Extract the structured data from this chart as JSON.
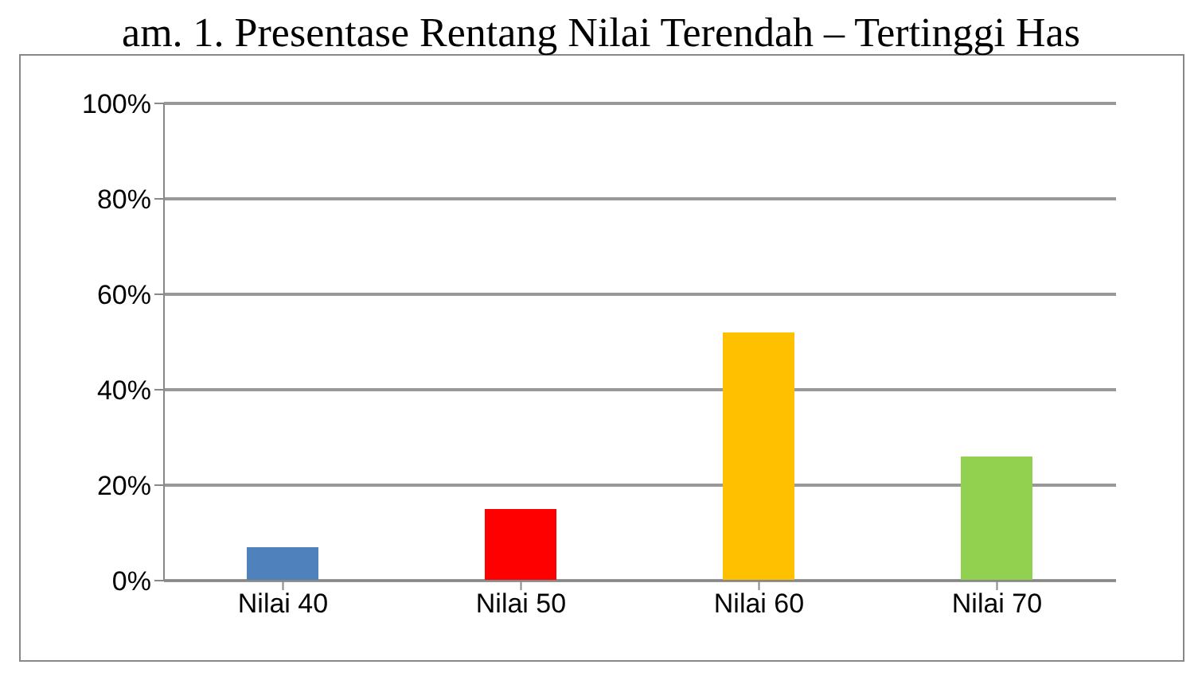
{
  "chart_data": {
    "type": "bar",
    "title": "am. 1. Presentase Rentang Nilai Terendah – Tertinggi Has",
    "categories": [
      "Nilai 40",
      "Nilai 50",
      "Nilai 60",
      "Nilai 70"
    ],
    "values": [
      7,
      15,
      52,
      26
    ],
    "colors": [
      "#4f81bd",
      "#ff0000",
      "#ffc000",
      "#92d050"
    ],
    "ylim": [
      0,
      100
    ],
    "yticks": [
      {
        "value": 0,
        "label": "0%"
      },
      {
        "value": 20,
        "label": "20%"
      },
      {
        "value": 40,
        "label": "40%"
      },
      {
        "value": 60,
        "label": "60%"
      },
      {
        "value": 80,
        "label": "80%"
      },
      {
        "value": 100,
        "label": "100%"
      }
    ],
    "grid": "y",
    "legend": false
  }
}
